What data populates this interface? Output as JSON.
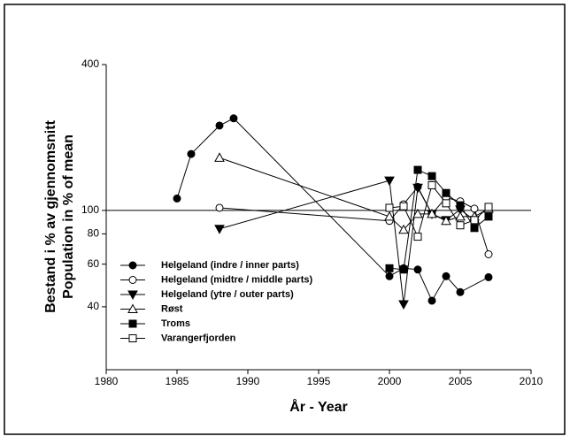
{
  "chart_data": {
    "type": "line",
    "xlabel": "År - Year",
    "ylabel": [
      "Bestand i % av gjennomsnitt",
      "Population in % of mean"
    ],
    "xlim": [
      1980,
      2010
    ],
    "xticks": [
      1980,
      1985,
      1990,
      1995,
      2000,
      2005,
      2010
    ],
    "ylim": [
      22,
      400
    ],
    "yticks": [
      40,
      60,
      80,
      100,
      400
    ],
    "log_y": true,
    "reference_line": 100,
    "legend": "lower left",
    "series": [
      {
        "name": "Helgeland (indre / inner parts)",
        "color": "#000000",
        "marker": "circle",
        "x": [
          1985,
          1986,
          1988,
          1989,
          2000,
          2001,
          2002,
          2003,
          2004,
          2005,
          2007
        ],
        "values": [
          112,
          171,
          224,
          240,
          53.5,
          57.7,
          57,
          42.4,
          53.5,
          46,
          53
        ]
      },
      {
        "name": "Helgeland (midtre / middle parts)",
        "color": "#000000",
        "marker": "circle-open",
        "x": [
          1988,
          2000,
          2001,
          2002,
          2003,
          2004,
          2005,
          2006,
          2007
        ],
        "values": [
          102.5,
          90.5,
          106,
          125,
          96.7,
          113,
          109,
          101.7,
          65.9
        ]
      },
      {
        "name": "Helgeland (ytre / outer parts)",
        "color": "#000000",
        "marker": "triangle-down",
        "x": [
          1988,
          2000,
          2001,
          2002,
          2003,
          2004,
          2005,
          2006
        ],
        "values": [
          83.9,
          132.8,
          41,
          124,
          96.7,
          91.2,
          100.8,
          91.2
        ]
      },
      {
        "name": "Røst",
        "color": "#000000",
        "marker": "triangle-up-open",
        "x": [
          1988,
          2000,
          2001,
          2002,
          2003,
          2004,
          2005,
          2006,
          2007
        ],
        "values": [
          165,
          94.3,
          83.2,
          96.7,
          96.7,
          90.5,
          94.3,
          94.3,
          101.7
        ]
      },
      {
        "name": "Troms",
        "color": "#000000",
        "marker": "square",
        "x": [
          2000,
          2001,
          2002,
          2003,
          2004,
          2005,
          2006,
          2007
        ],
        "values": [
          57.7,
          57,
          147,
          138.5,
          118,
          105,
          84.6,
          94.3
        ]
      },
      {
        "name": "Varangerfjorden",
        "color": "#000000",
        "marker": "square-open",
        "x": [
          2000,
          2001,
          2002,
          2003,
          2004,
          2005,
          2006,
          2007
        ],
        "values": [
          102.5,
          104,
          77.9,
          127,
          107,
          86.8,
          91.2,
          103.4
        ]
      }
    ]
  }
}
